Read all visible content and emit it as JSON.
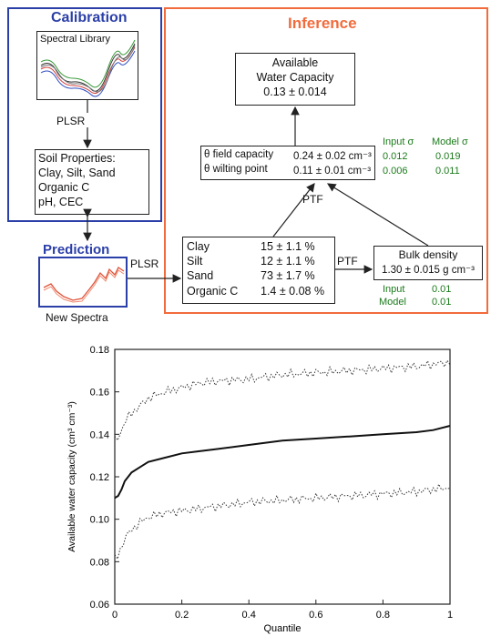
{
  "colors": {
    "calibration_blue": "#2b3fa8",
    "inference_orange": "#f26b3c",
    "sigma_green": "#1a7a1a",
    "spectra_red": "#e0533a"
  },
  "calibration": {
    "title": "Calibration",
    "spectral_library_label": "Spectral Library",
    "method": "PLSR",
    "soil_properties": {
      "line1": "Soil Properties:",
      "line2": "Clay, Silt, Sand",
      "line3": "Organic C",
      "line4": "pH, CEC"
    }
  },
  "prediction": {
    "title": "Prediction",
    "new_spectra_label": "New Spectra",
    "method": "PLSR"
  },
  "inference": {
    "title": "Inference",
    "awc": {
      "line1": "Available",
      "line2": "Water Capacity",
      "line3": "0.13 ± 0.014"
    },
    "theta": {
      "fc_label": "θ field capacity",
      "fc_value": "0.24 ± 0.02 cm⁻³",
      "wp_label": "θ wilting point",
      "wp_value": "0.11 ± 0.01 cm⁻³"
    },
    "sigma_table": {
      "input_header": "Input σ",
      "model_header": "Model σ",
      "rows": [
        {
          "input": "0.012",
          "model": "0.019"
        },
        {
          "input": "0.006",
          "model": "0.011"
        }
      ]
    },
    "ptf_top": "PTF",
    "ptf_right": "PTF",
    "properties": [
      {
        "name": "Clay",
        "value": "15 ± 1.1 %"
      },
      {
        "name": "Silt",
        "value": "12 ± 1.1 %"
      },
      {
        "name": "Sand",
        "value": "73 ± 1.7 %"
      },
      {
        "name": "Organic C",
        "value": "1.4 ± 0.08 %"
      }
    ],
    "bulk_density": {
      "line1": "Bulk  density",
      "line2": "1.30 ± 0.015 g cm⁻³",
      "input_label": "Input",
      "input_value": "0.01",
      "model_label": "Model",
      "model_value": "0.01"
    }
  },
  "chart_data": {
    "type": "line",
    "title": "",
    "xlabel": "Quantile",
    "ylabel": "Available water capacity (cm³ cm⁻³)",
    "xlim": [
      0,
      1
    ],
    "ylim": [
      0.06,
      0.18
    ],
    "x_ticks": [
      "0",
      "0.2",
      "0.4",
      "0.6",
      "0.8",
      "1"
    ],
    "y_ticks": [
      "0.06",
      "0.08",
      "0.10",
      "0.12",
      "0.14",
      "0.16",
      "0.18"
    ],
    "series": [
      {
        "style": "solid",
        "x": [
          0,
          0.01,
          0.02,
          0.03,
          0.05,
          0.08,
          0.1,
          0.15,
          0.2,
          0.25,
          0.3,
          0.4,
          0.5,
          0.6,
          0.7,
          0.8,
          0.9,
          0.95,
          1.0
        ],
        "y": [
          0.11,
          0.111,
          0.114,
          0.118,
          0.122,
          0.125,
          0.127,
          0.129,
          0.131,
          0.132,
          0.133,
          0.135,
          0.137,
          0.138,
          0.139,
          0.14,
          0.141,
          0.142,
          0.144
        ]
      },
      {
        "style": "dotted",
        "x": [
          0,
          0.01,
          0.02,
          0.03,
          0.05,
          0.08,
          0.1,
          0.15,
          0.2,
          0.25,
          0.3,
          0.4,
          0.5,
          0.6,
          0.7,
          0.8,
          0.9,
          0.95,
          1.0
        ],
        "y": [
          0.137,
          0.138,
          0.142,
          0.146,
          0.15,
          0.154,
          0.157,
          0.16,
          0.162,
          0.164,
          0.165,
          0.166,
          0.168,
          0.169,
          0.17,
          0.171,
          0.172,
          0.173,
          0.174
        ]
      },
      {
        "style": "dotted",
        "x": [
          0,
          0.01,
          0.02,
          0.03,
          0.05,
          0.08,
          0.1,
          0.15,
          0.2,
          0.25,
          0.3,
          0.4,
          0.5,
          0.6,
          0.7,
          0.8,
          0.9,
          0.95,
          1.0
        ],
        "y": [
          0.081,
          0.083,
          0.087,
          0.091,
          0.095,
          0.099,
          0.101,
          0.103,
          0.104,
          0.105,
          0.106,
          0.108,
          0.109,
          0.11,
          0.111,
          0.112,
          0.113,
          0.114,
          0.115
        ]
      }
    ],
    "grid": false,
    "legend": "none"
  }
}
